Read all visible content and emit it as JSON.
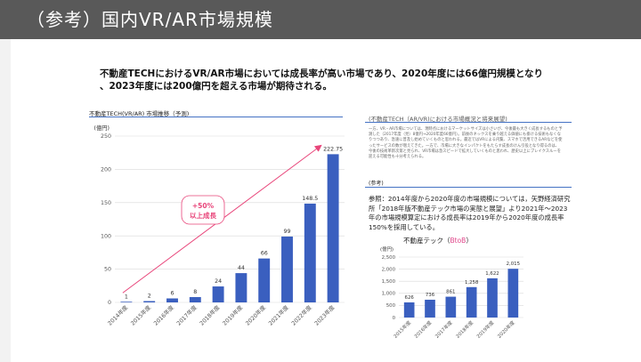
{
  "header": {
    "title": "（参考）国内VR/AR市場規模"
  },
  "headline": {
    "line1": "不動産TECHにおけるVR/AR市場においては成長率が高い市場であり、2020年度には66億円規模となり",
    "line2": "、2023年度には200億円を超える市場が期待される。"
  },
  "left_panel": {
    "label": "不動産TECH(VR/AR) 市場推移（予測)"
  },
  "right_panel": {
    "label": "(不動産TECH（AR/VR)における市場概況と将来展望)",
    "note": "一方、VR・AR市場については、現時点におけるマーケットサイズは小さいが、今後最も大きく成長するものと予測した（2017年度（見）8億円→2020年度66億円）。前後のネックスを乗り越える価値にも掛ける技術もなくなりつつあり、急速に普及し始めていくものと思われる。最近ではVRによる内覧、スマホで活用できるARなどを使ったサービスの数が増えてきた。一方で、市場に大きなインパクトをもたらす成長のけん引役となり得るのは、今後の技術革新次第と見られ、VR市場は急スピードで拡大していくものと思われ、歴史以上にブレイクスルーを迎える可能性も十分考えられる。",
    "ref_head": "(参考)",
    "ref_text": "参照：2014年度から2020年度の市場規模については，矢野経済研究所「2018年版不動産テック市場の実態と展望」より2021年～2023年の市場規模算定における成長率は2019年から2020年度の成長率150%を採用している。",
    "small_title_main": "不動産テック（",
    "small_title_b2b": "BtoB",
    "small_title_end": "）"
  },
  "chart_data": [
    {
      "type": "bar",
      "title": "",
      "ylabel": "(億円)",
      "ylim": [
        0,
        250
      ],
      "yticks": [
        0,
        50,
        100,
        150,
        200,
        250
      ],
      "categories": [
        "2014年度",
        "2015年度",
        "2016年度",
        "2017年度",
        "2018年度",
        "2019年度",
        "2020年度",
        "2021年度",
        "2022年度",
        "2023年度"
      ],
      "values": [
        1,
        2,
        6,
        8,
        24,
        44,
        66,
        99,
        148.5,
        222.75
      ],
      "value_labels": [
        "1",
        "2",
        "6",
        "8",
        "24",
        "44",
        "66",
        "99",
        "148.5",
        "222.75"
      ],
      "annotation": {
        "line1": "+50%",
        "line2": "以上成長"
      },
      "colors": {
        "bar": "#3a5fbf",
        "arrow": "#e8457a"
      }
    },
    {
      "type": "bar",
      "title": "",
      "ylabel": "(億円)",
      "ylim": [
        0,
        2500
      ],
      "yticks": [
        0,
        500,
        1000,
        1500,
        2000,
        2500
      ],
      "ytick_labels": [
        "0",
        "500",
        "1,000",
        "1,500",
        "2,000",
        "2,500"
      ],
      "categories": [
        "2015年度",
        "2016年度",
        "2017年度",
        "2018年度",
        "2019年度",
        "2020年度"
      ],
      "values": [
        626,
        736,
        861,
        1258,
        1622,
        2015
      ],
      "value_labels": [
        "626",
        "736",
        "861",
        "1,258",
        "1,622",
        "2,015"
      ],
      "colors": {
        "bar": "#3a5fbf"
      }
    }
  ]
}
